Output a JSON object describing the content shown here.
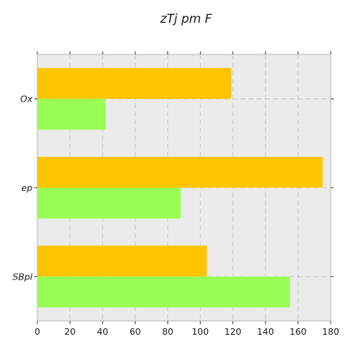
{
  "chart_data": {
    "type": "bar",
    "orientation": "horizontal",
    "title": "zTj pm F",
    "xlabel": "",
    "ylabel": "",
    "categories": [
      "Ox",
      "ep",
      "SBpl"
    ],
    "series": [
      {
        "color": "#ffc400",
        "values": [
          119,
          175,
          104
        ]
      },
      {
        "color": "#99ff55",
        "values": [
          42,
          88,
          155
        ]
      }
    ],
    "xlim": [
      0,
      180
    ],
    "xticks": [
      0,
      20,
      40,
      60,
      80,
      100,
      120,
      140,
      160,
      180
    ],
    "grid": true,
    "legend": "none",
    "background": "#ebebeb"
  }
}
